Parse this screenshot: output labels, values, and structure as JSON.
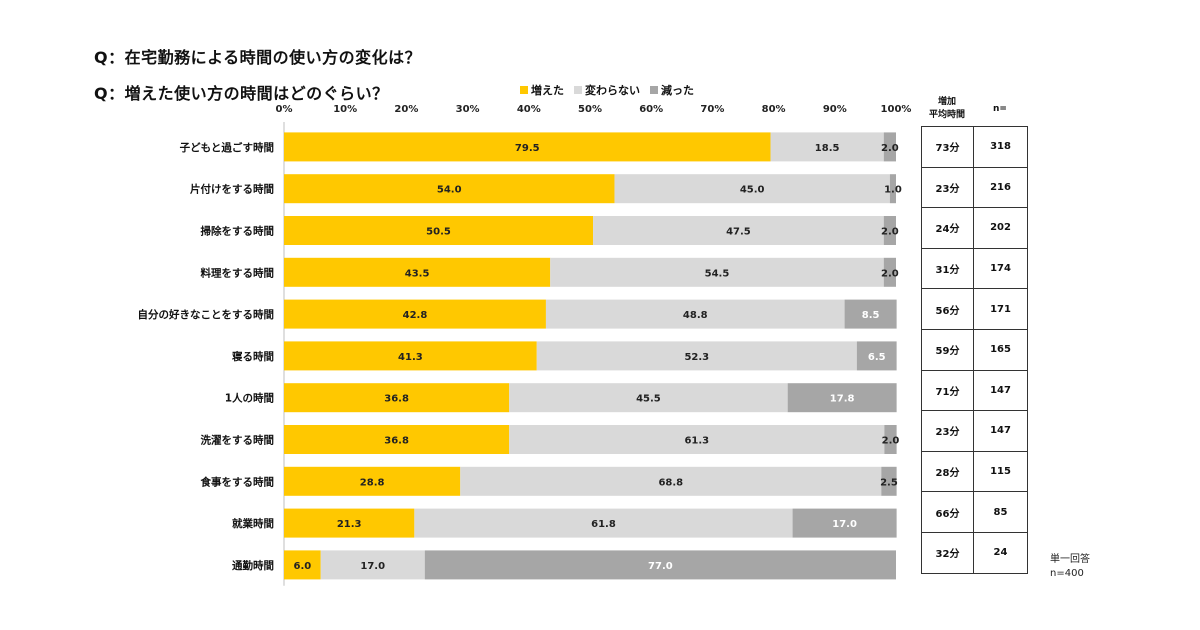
{
  "titles": {
    "q1": "Q：在宅勤務による時間の使い方の変化は？",
    "q2": "Q：増えた使い方の時間はどのぐらい？"
  },
  "legend": [
    {
      "label": "増えた",
      "color": "#FFC800"
    },
    {
      "label": "変わらない",
      "color": "#D9D9D9"
    },
    {
      "label": "減った",
      "color": "#A6A6A6"
    }
  ],
  "side_table": {
    "head_avg": "増加\n平均時間",
    "head_n": "n=",
    "rows": [
      {
        "avg": "73分",
        "n": "318"
      },
      {
        "avg": "23分",
        "n": "216"
      },
      {
        "avg": "24分",
        "n": "202"
      },
      {
        "avg": "31分",
        "n": "174"
      },
      {
        "avg": "56分",
        "n": "171"
      },
      {
        "avg": "59分",
        "n": "165"
      },
      {
        "avg": "71分",
        "n": "147"
      },
      {
        "avg": "23分",
        "n": "147"
      },
      {
        "avg": "28分",
        "n": "115"
      },
      {
        "avg": "66分",
        "n": "85"
      },
      {
        "avg": "32分",
        "n": "24"
      }
    ]
  },
  "note": {
    "line1": "単一回答",
    "line2": "n=400"
  },
  "chart_data": {
    "type": "bar",
    "orientation": "horizontal",
    "stacked": true,
    "xlim": [
      0,
      100
    ],
    "tick_labels": [
      "0%",
      "10%",
      "20%",
      "30%",
      "40%",
      "50%",
      "60%",
      "70%",
      "80%",
      "90%",
      "100%"
    ],
    "legend_position": "top",
    "categories": [
      "子どもと過ごす時間",
      "片付けをする時間",
      "掃除をする時間",
      "料理をする時間",
      "自分の好きなことをする時間",
      "寝る時間",
      "1人の時間",
      "洗濯をする時間",
      "食事をする時間",
      "就業時間",
      "通勤時間"
    ],
    "series": [
      {
        "name": "増えた",
        "color": "#FFC800",
        "label_color": "#222222",
        "values": [
          79.5,
          54.0,
          50.5,
          43.5,
          42.8,
          41.3,
          36.8,
          36.8,
          28.8,
          21.3,
          6.0
        ],
        "labels": [
          "79.5",
          "54.0",
          "50.5",
          "43.5",
          "42.8",
          "41.3",
          "36.8",
          "36.8",
          "28.8",
          "21.3",
          "6.0"
        ]
      },
      {
        "name": "変わらない",
        "color": "#D9D9D9",
        "label_color": "#222222",
        "values": [
          18.5,
          45.0,
          47.5,
          54.5,
          48.8,
          52.3,
          45.5,
          61.3,
          68.8,
          61.8,
          17.0
        ],
        "labels": [
          "18.5",
          "45.0",
          "47.5",
          "54.5",
          "48.8",
          "52.3",
          "45.5",
          "61.3",
          "68.8",
          "61.8",
          "17.0"
        ]
      },
      {
        "name": "減った",
        "color": "#A6A6A6",
        "label_color": "#FFFFFF",
        "values": [
          2.0,
          1.0,
          2.0,
          2.0,
          8.5,
          6.5,
          17.8,
          2.0,
          2.5,
          17.0,
          77.0
        ],
        "labels": [
          "2.0",
          "1.0",
          "2.0",
          "2.0",
          "8.5",
          "6.5",
          "17.8",
          "2.0",
          "2.5",
          "17.0",
          "77.0"
        ]
      }
    ]
  }
}
